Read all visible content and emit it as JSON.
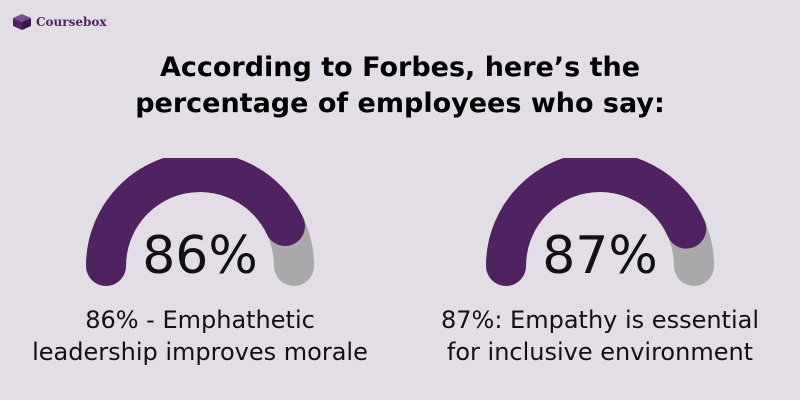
{
  "brand": {
    "name": "Coursebox",
    "icon": "box-icon",
    "color": "#4f2262"
  },
  "title": {
    "line1": "According to Forbes, here’s the",
    "line2": "percentage of employees who say:"
  },
  "chart_data": [
    {
      "type": "gauge",
      "value": 86,
      "max": 100,
      "label": "86%",
      "caption_line1": "86% - Emphathetic",
      "caption_line2": "leadership improves morale"
    },
    {
      "type": "gauge",
      "value": 87,
      "max": 100,
      "label": "87%",
      "caption_line1": "87%: Empathy is essential",
      "caption_line2": "for inclusive environment"
    }
  ],
  "colors": {
    "background": "#e3dee6",
    "gauge_fill": "#4f2262",
    "gauge_track": "#a9a9a9"
  }
}
